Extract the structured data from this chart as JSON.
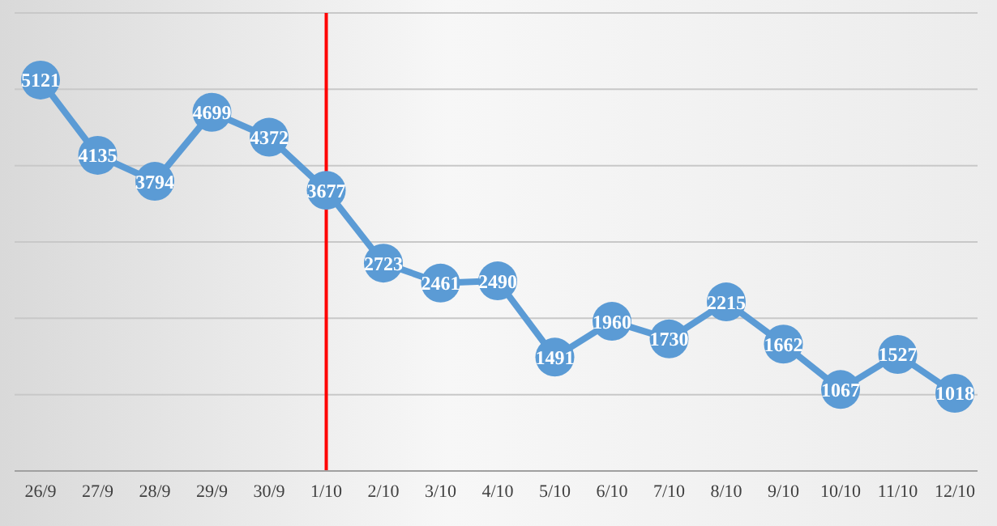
{
  "chart_data": {
    "type": "line",
    "categories": [
      "26/9",
      "27/9",
      "28/9",
      "29/9",
      "30/9",
      "1/10",
      "2/10",
      "3/10",
      "4/10",
      "5/10",
      "6/10",
      "7/10",
      "8/10",
      "9/10",
      "10/10",
      "11/10",
      "12/10"
    ],
    "series": [
      {
        "color": "#5b9bd5",
        "values": [
          5121,
          4135,
          3794,
          4699,
          4372,
          3677,
          2723,
          2461,
          2490,
          1491,
          1960,
          1730,
          2215,
          1662,
          1067,
          1527,
          1018
        ]
      }
    ],
    "ylim": [
      0,
      6000
    ],
    "tick_labels": "x",
    "grid": "y",
    "marker": "circle",
    "line_style": "solid",
    "data_labels": true,
    "legend": false,
    "ref_lines": [
      {
        "axis": "x",
        "value": "1/10",
        "color": "#ff0000"
      }
    ]
  }
}
